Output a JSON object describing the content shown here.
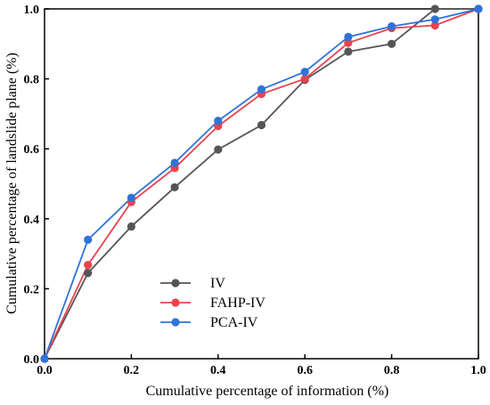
{
  "chart_data": {
    "type": "line",
    "title": "",
    "xlabel": "Cumulative percentage of information (%)",
    "ylabel": "Cumulative percentage of landslide plane (%)",
    "xlim": [
      0,
      1.0
    ],
    "ylim": [
      0,
      1.0
    ],
    "xticks": [
      "0.0",
      "0.2",
      "0.4",
      "0.6",
      "0.8",
      "1.0"
    ],
    "yticks": [
      "0.0",
      "0.2",
      "0.4",
      "0.6",
      "0.8",
      "1.0"
    ],
    "grid": false,
    "legend_position": "bottom-left",
    "x": [
      0.0,
      0.1,
      0.2,
      0.3,
      0.4,
      0.5,
      0.6,
      0.7,
      0.8,
      0.9,
      1.0
    ],
    "series": [
      {
        "name": "IV",
        "color": "#555555",
        "values": [
          0.0,
          0.245,
          0.378,
          0.49,
          0.598,
          0.668,
          0.797,
          0.878,
          0.9,
          1.0,
          1.0
        ]
      },
      {
        "name": "FAHP-IV",
        "color": "#e8434f",
        "values": [
          0.0,
          0.268,
          0.448,
          0.545,
          0.665,
          0.757,
          0.8,
          0.903,
          0.945,
          0.953,
          1.0
        ]
      },
      {
        "name": "PCA-IV",
        "color": "#2f73d9",
        "values": [
          0.0,
          0.34,
          0.46,
          0.56,
          0.68,
          0.77,
          0.82,
          0.92,
          0.95,
          0.97,
          1.0
        ]
      }
    ]
  }
}
